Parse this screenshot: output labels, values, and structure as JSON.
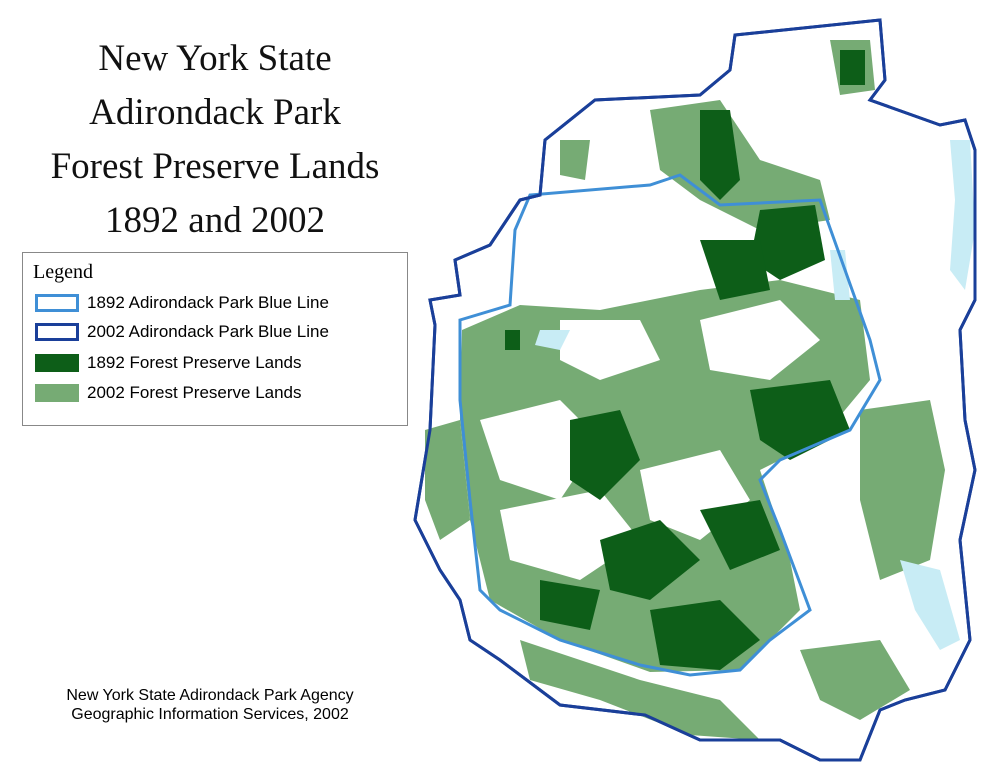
{
  "title_lines": [
    "New York State",
    "Adirondack Park",
    "Forest Preserve Lands",
    "1892 and 2002"
  ],
  "legend": {
    "title": "Legend",
    "items": [
      {
        "label": "1892 Adirondack Park Blue Line"
      },
      {
        "label": "2002 Adirondack Park Blue Line"
      },
      {
        "label": "1892 Forest Preserve Lands"
      },
      {
        "label": "2002 Forest Preserve Lands"
      }
    ]
  },
  "credits": [
    "New York State Adirondack Park Agency",
    "Geographic Information Services, 2002"
  ]
}
